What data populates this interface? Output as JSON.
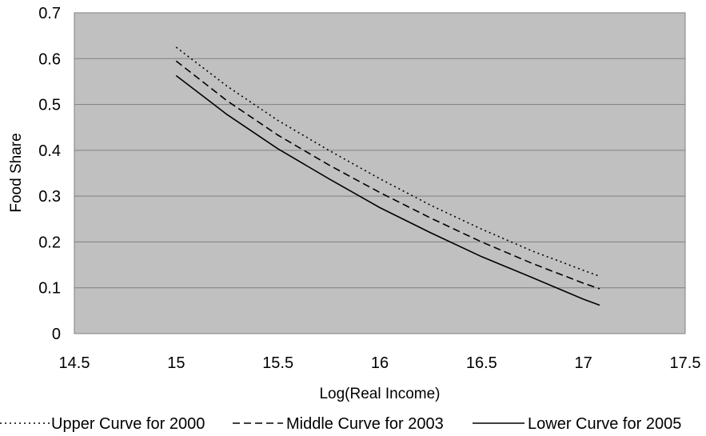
{
  "chart_data": {
    "type": "line",
    "title": "",
    "xlabel": "Log(Real Income)",
    "ylabel": "Food Share",
    "xlim": [
      14.5,
      17.5
    ],
    "ylim": [
      0,
      0.7
    ],
    "xticks": [
      "14.5",
      "15",
      "15.5",
      "16",
      "16.5",
      "17",
      "17.5"
    ],
    "yticks": [
      "0",
      "0.1",
      "0.2",
      "0.3",
      "0.4",
      "0.5",
      "0.6",
      "0.7"
    ],
    "grid": "horizontal",
    "plot_background": "#c0c0c0",
    "legend_position": "bottom",
    "x": [
      15.0,
      15.25,
      15.5,
      15.75,
      16.0,
      16.25,
      16.5,
      16.75,
      17.0,
      17.08
    ],
    "series": [
      {
        "name": "Upper Curve for 2000",
        "style": "dotted",
        "values": [
          0.625,
          0.54,
          0.465,
          0.4,
          0.338,
          0.28,
          0.228,
          0.18,
          0.138,
          0.125
        ]
      },
      {
        "name": "Middle Curve for 2003",
        "style": "dashed",
        "values": [
          0.595,
          0.508,
          0.433,
          0.368,
          0.308,
          0.252,
          0.2,
          0.153,
          0.11,
          0.098
        ]
      },
      {
        "name": "Lower Curve for 2005",
        "style": "solid",
        "values": [
          0.563,
          0.478,
          0.403,
          0.338,
          0.275,
          0.22,
          0.168,
          0.122,
          0.075,
          0.062
        ]
      }
    ]
  }
}
